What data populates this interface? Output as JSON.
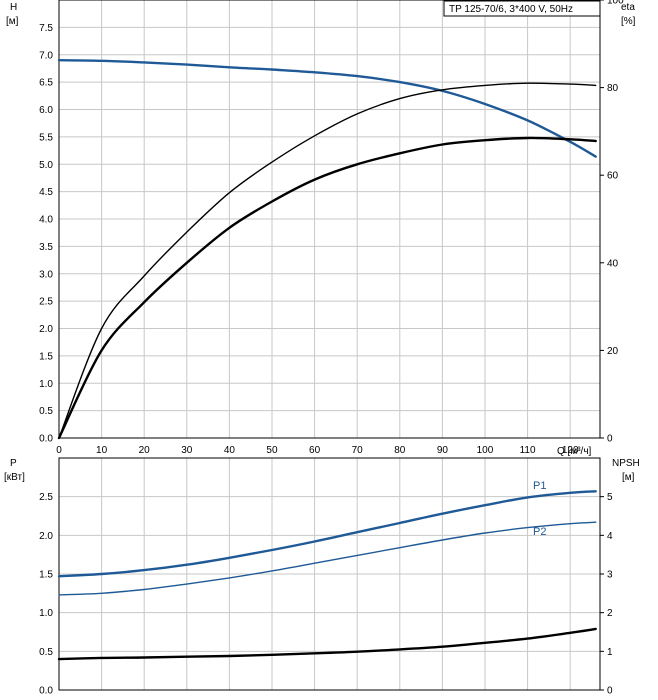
{
  "chart_data": [
    {
      "type": "line",
      "legend_box": "TP 125-70/6, 3*400 V, 50Hz",
      "legend_placement": "top-right",
      "grid": true,
      "x_axis": {
        "label": "Q [м³/ч]",
        "range": [
          0,
          127
        ],
        "ticks": [
          "0",
          "10",
          "20",
          "30",
          "40",
          "50",
          "60",
          "70",
          "80",
          "90",
          "100",
          "110",
          "120"
        ]
      },
      "y_left": {
        "label_top": "H",
        "label_unit": "[м]",
        "range": [
          0,
          8
        ],
        "ticks": [
          "0.0",
          "0.5",
          "1.0",
          "1.5",
          "2.0",
          "2.5",
          "3.0",
          "3.5",
          "4.0",
          "4.5",
          "5.0",
          "5.5",
          "6.0",
          "6.5",
          "7.0",
          "7.5"
        ]
      },
      "y_right": {
        "label_top": "eta",
        "label_unit": "[%]",
        "range": [
          0,
          100
        ],
        "ticks": [
          "0",
          "20",
          "40",
          "60",
          "80",
          "100"
        ]
      },
      "series": [
        {
          "axis": "left",
          "color": "#1f5a96",
          "points": [
            [
              0,
              6.9
            ],
            [
              10,
              6.89
            ],
            [
              20,
              6.86
            ],
            [
              30,
              6.82
            ],
            [
              40,
              6.77
            ],
            [
              50,
              6.73
            ],
            [
              60,
              6.68
            ],
            [
              70,
              6.61
            ],
            [
              80,
              6.5
            ],
            [
              90,
              6.34
            ],
            [
              100,
              6.1
            ],
            [
              110,
              5.8
            ],
            [
              120,
              5.41
            ],
            [
              126,
              5.14
            ]
          ]
        },
        {
          "axis": "right",
          "color": "#000000",
          "points": [
            [
              0,
              0
            ],
            [
              10,
              25
            ],
            [
              20,
              37
            ],
            [
              30,
              47
            ],
            [
              40,
              56
            ],
            [
              50,
              63
            ],
            [
              60,
              69
            ],
            [
              70,
              74
            ],
            [
              80,
              77.5
            ],
            [
              90,
              79.5
            ],
            [
              100,
              80.5
            ],
            [
              110,
              81
            ],
            [
              120,
              80.8
            ],
            [
              126,
              80.5
            ]
          ]
        },
        {
          "axis": "right",
          "color": "#000000",
          "points": [
            [
              0,
              0
            ],
            [
              10,
              20
            ],
            [
              20,
              31
            ],
            [
              30,
              40
            ],
            [
              40,
              48
            ],
            [
              50,
              54
            ],
            [
              60,
              59
            ],
            [
              70,
              62.5
            ],
            [
              80,
              65
            ],
            [
              90,
              67
            ],
            [
              100,
              68
            ],
            [
              110,
              68.5
            ],
            [
              120,
              68.2
            ],
            [
              126,
              67.8
            ]
          ]
        }
      ]
    },
    {
      "type": "line",
      "grid": true,
      "x_axis": {
        "range": [
          0,
          127
        ]
      },
      "y_left": {
        "label_top": "P",
        "label_unit": "[кВт]",
        "range": [
          0,
          3
        ],
        "ticks": [
          "0.0",
          "0.5",
          "1.0",
          "1.5",
          "2.0",
          "2.5"
        ]
      },
      "y_right": {
        "label_top": "NPSH",
        "label_unit": "[м]",
        "range": [
          0,
          6
        ],
        "ticks": [
          "0",
          "1",
          "2",
          "3",
          "4",
          "5"
        ]
      },
      "series": [
        {
          "name": "P1",
          "axis": "left",
          "color": "#1f5a96",
          "points": [
            [
              0,
              1.47
            ],
            [
              10,
              1.5
            ],
            [
              20,
              1.55
            ],
            [
              30,
              1.62
            ],
            [
              40,
              1.71
            ],
            [
              50,
              1.81
            ],
            [
              60,
              1.92
            ],
            [
              70,
              2.04
            ],
            [
              80,
              2.16
            ],
            [
              90,
              2.28
            ],
            [
              100,
              2.39
            ],
            [
              110,
              2.49
            ],
            [
              120,
              2.55
            ],
            [
              126,
              2.57
            ]
          ]
        },
        {
          "name": "P2",
          "axis": "left",
          "color": "#1f5a96",
          "points": [
            [
              0,
              1.23
            ],
            [
              10,
              1.25
            ],
            [
              20,
              1.3
            ],
            [
              30,
              1.37
            ],
            [
              40,
              1.45
            ],
            [
              50,
              1.54
            ],
            [
              60,
              1.64
            ],
            [
              70,
              1.74
            ],
            [
              80,
              1.84
            ],
            [
              90,
              1.94
            ],
            [
              100,
              2.03
            ],
            [
              110,
              2.1
            ],
            [
              120,
              2.15
            ],
            [
              126,
              2.17
            ]
          ]
        },
        {
          "axis": "right",
          "color": "#000000",
          "points": [
            [
              0,
              0.8
            ],
            [
              10,
              0.83
            ],
            [
              20,
              0.84
            ],
            [
              30,
              0.86
            ],
            [
              40,
              0.88
            ],
            [
              50,
              0.91
            ],
            [
              60,
              0.95
            ],
            [
              70,
              0.99
            ],
            [
              80,
              1.05
            ],
            [
              90,
              1.12
            ],
            [
              100,
              1.22
            ],
            [
              110,
              1.33
            ],
            [
              120,
              1.48
            ],
            [
              126,
              1.58
            ]
          ]
        }
      ]
    }
  ]
}
